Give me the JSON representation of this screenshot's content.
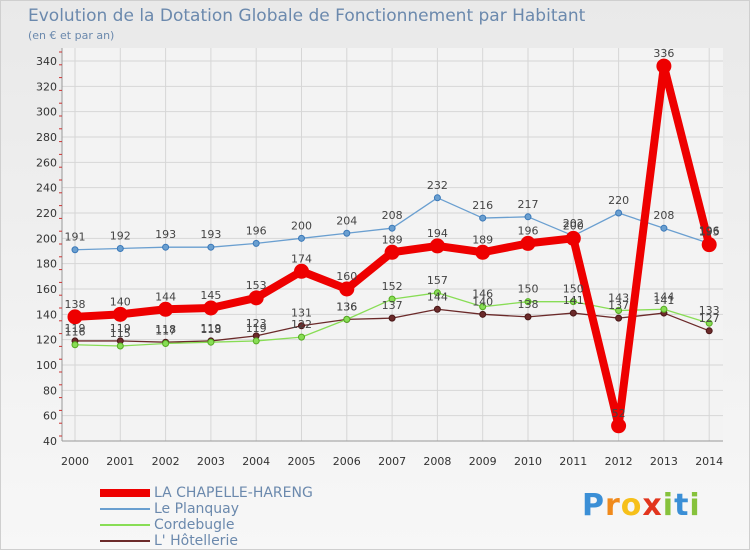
{
  "chart_data": {
    "type": "line",
    "title": "Evolution de la Dotation Globale de Fonctionnement par Habitant",
    "subtitle": "(en € et par an)",
    "xlabel": "",
    "ylabel": "",
    "ylim": [
      40,
      340
    ],
    "y_ticks": [
      40,
      60,
      80,
      100,
      120,
      140,
      160,
      180,
      200,
      220,
      240,
      260,
      280,
      300,
      320,
      340
    ],
    "grid": true,
    "categories": [
      "2000",
      "2001",
      "2002",
      "2003",
      "2004",
      "2005",
      "2006",
      "2007",
      "2008",
      "2009",
      "2010",
      "2011",
      "2012",
      "2013",
      "2014"
    ],
    "series": [
      {
        "name": "LA CHAPELLE-HARENG",
        "color": "#ee0000",
        "values": [
          138,
          140,
          144,
          145,
          153,
          174,
          160,
          189,
          194,
          189,
          196,
          200,
          52,
          336,
          195
        ],
        "labels": [
          "138",
          "140",
          "144",
          "145",
          "153",
          "174",
          "160",
          "189",
          "194",
          "189",
          "196",
          "200",
          "52",
          "336",
          "195"
        ]
      },
      {
        "name": "Le Planquay",
        "color": "#6a9fd0",
        "values": [
          191,
          192,
          193,
          193,
          196,
          200,
          204,
          208,
          232,
          216,
          217,
          202,
          220,
          208,
          196
        ],
        "labels": [
          "191",
          "192",
          "193",
          "193",
          "196",
          "200",
          "204",
          "208",
          "232",
          "216",
          "217",
          "202",
          "220",
          "208",
          "196"
        ]
      },
      {
        "name": "Cordebugle",
        "color": "#88dd55",
        "values": [
          116,
          115,
          117,
          118,
          119,
          122,
          136,
          152,
          157,
          146,
          150,
          150,
          143,
          144,
          133
        ],
        "labels": [
          "116",
          "115",
          "117",
          "118",
          "119",
          "122",
          "136",
          "152",
          "157",
          "146",
          "150",
          "150",
          "143",
          "144",
          "133"
        ]
      },
      {
        "name": "L' Hôtellerie",
        "color": "#6b2a2a",
        "values": [
          119,
          119,
          118,
          119,
          123,
          131,
          136,
          137,
          144,
          140,
          138,
          141,
          137,
          141,
          127
        ],
        "labels": [
          "119",
          "119",
          "118",
          "119",
          "123",
          "131",
          "136",
          "137",
          "144",
          "140",
          "138",
          "141",
          "137",
          "141",
          "127"
        ]
      }
    ]
  },
  "brand": {
    "letters": [
      "P",
      "r",
      "o",
      "x",
      "i",
      "t",
      "i"
    ],
    "colors": [
      "#3b8fd6",
      "#f08a1c",
      "#f6c01a",
      "#e2351e",
      "#86c23c",
      "#3b8fd6",
      "#86c23c"
    ]
  }
}
